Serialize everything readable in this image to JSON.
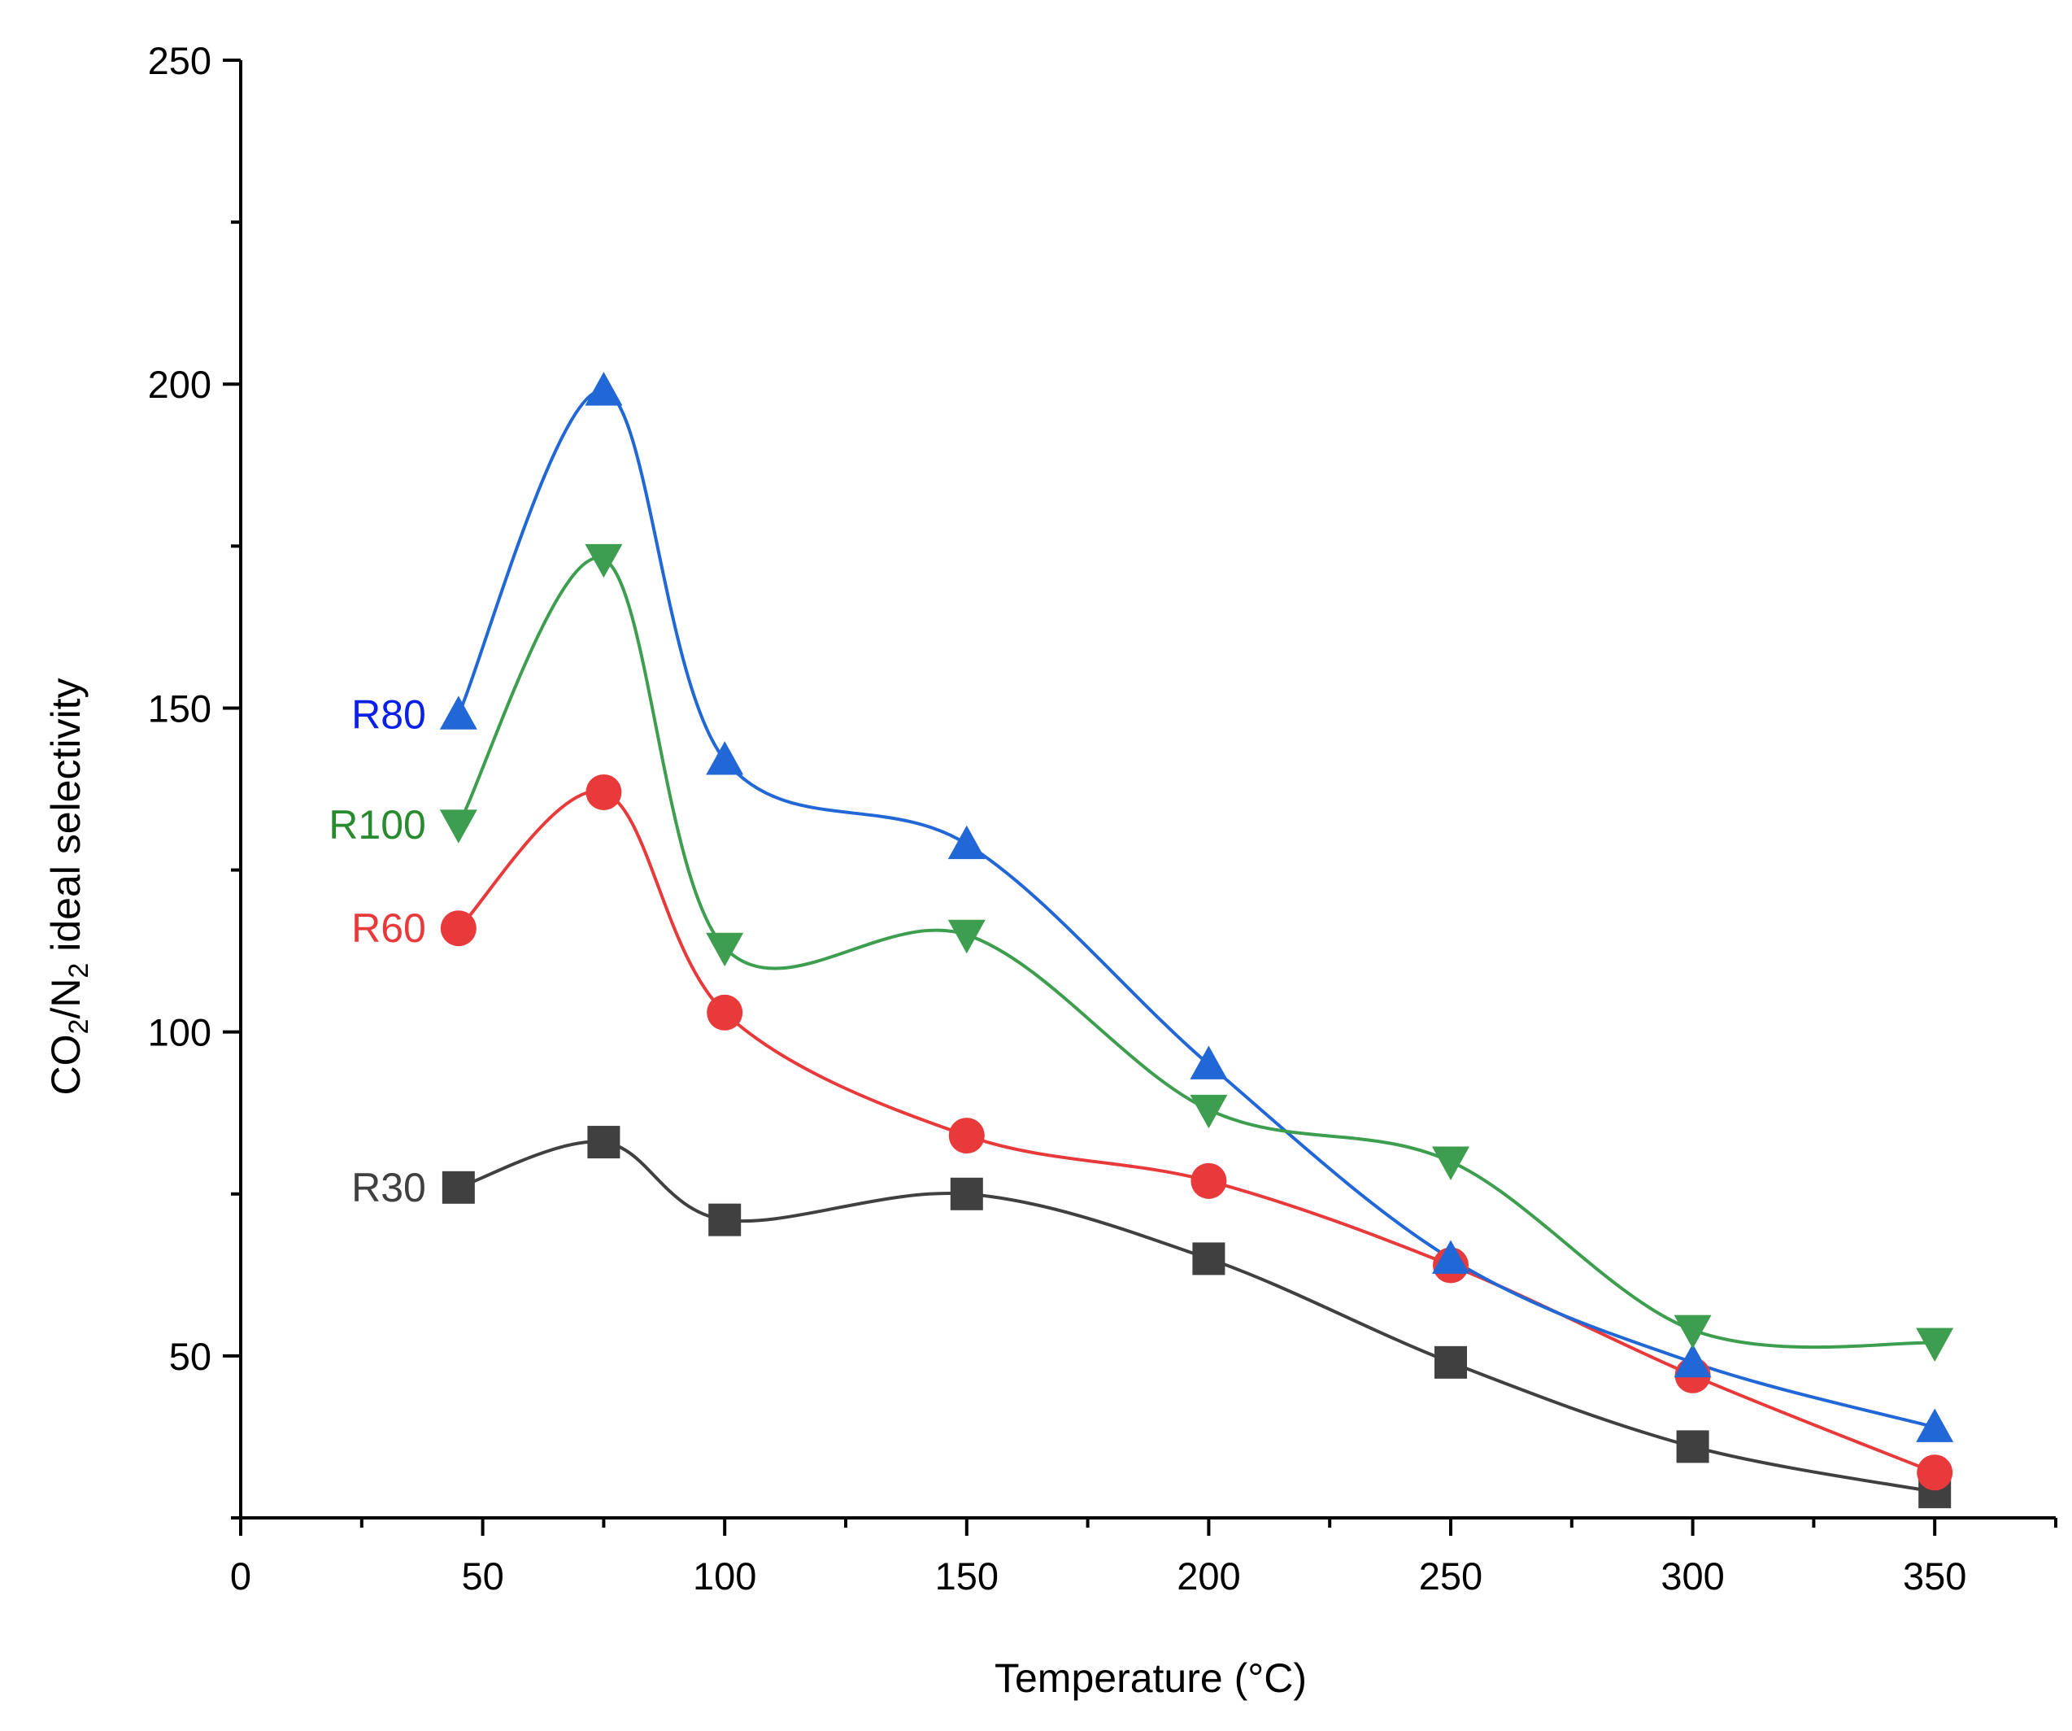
{
  "chart_data": {
    "type": "line",
    "title": "",
    "xlabel": "Temperature (°C)",
    "ylabel": {
      "parts": [
        "CO",
        "2",
        "/N",
        "2",
        " ideal selectivity"
      ]
    },
    "xlim": [
      0,
      375
    ],
    "ylim": [
      25,
      250
    ],
    "xticks": [
      0,
      50,
      100,
      150,
      200,
      250,
      300,
      350
    ],
    "yticks": [
      50,
      100,
      150,
      200,
      250
    ],
    "grid": false,
    "legend": "inline labels left of first point",
    "x": [
      45,
      75,
      100,
      150,
      200,
      250,
      300,
      350
    ],
    "series": [
      {
        "name": "R30",
        "color": "#404040",
        "marker": "square",
        "values": [
          76,
          83,
          71,
          75,
          65,
          49,
          36,
          29
        ]
      },
      {
        "name": "R60",
        "color": "#e8393b",
        "marker": "circle",
        "values": [
          116,
          137,
          103,
          84,
          77,
          64,
          47,
          32
        ]
      },
      {
        "name": "R80",
        "color": "#2167d6",
        "marker": "triangle-up",
        "label_color": "#0a1fe8",
        "values": [
          149,
          199,
          142,
          129,
          95,
          65,
          49,
          39
        ]
      },
      {
        "name": "R100",
        "color": "#3c9e4e",
        "marker": "triangle-down",
        "label_color": "#2a8a2f",
        "values": [
          132,
          173,
          113,
          115,
          88,
          80,
          54,
          52
        ]
      }
    ]
  }
}
